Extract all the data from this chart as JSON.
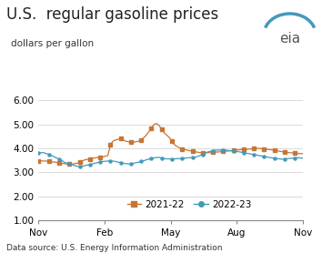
{
  "title": "U.S.  regular gasoline prices",
  "ylabel": "dollars per gallon",
  "datasource": "Data source: U.S. Energy Information Administration",
  "eia_text": "eia",
  "ylim": [
    1.0,
    6.5
  ],
  "yticks": [
    1.0,
    2.0,
    3.0,
    4.0,
    5.0,
    6.0
  ],
  "ytick_labels": [
    "1.00",
    "2.00",
    "3.00",
    "4.00",
    "5.00",
    "6.00"
  ],
  "xtick_labels": [
    "Nov",
    "Feb",
    "May",
    "Aug",
    "Nov"
  ],
  "xtick_pos": [
    0.0,
    0.25,
    0.5,
    0.75,
    1.0
  ],
  "color_2122": "#C87533",
  "color_2223": "#4499BB",
  "series_2122": [
    3.48,
    3.48,
    3.47,
    3.47,
    3.45,
    3.44,
    3.43,
    3.41,
    3.38,
    3.37,
    3.36,
    3.35,
    3.34,
    3.34,
    3.36,
    3.38,
    3.42,
    3.47,
    3.52,
    3.54,
    3.56,
    3.59,
    3.6,
    3.62,
    3.63,
    3.65,
    3.67,
    3.7,
    4.15,
    4.3,
    4.35,
    4.38,
    4.4,
    4.35,
    4.3,
    4.28,
    4.25,
    4.25,
    4.28,
    4.3,
    4.35,
    4.45,
    4.55,
    4.7,
    4.85,
    5.0,
    5.04,
    4.95,
    4.8,
    4.65,
    4.55,
    4.45,
    4.3,
    4.15,
    4.08,
    4.02,
    3.98,
    3.95,
    3.92,
    3.9,
    3.88,
    3.86,
    3.84,
    3.82,
    3.82,
    3.82,
    3.82,
    3.82,
    3.83,
    3.84,
    3.85,
    3.86,
    3.87,
    3.88,
    3.89,
    3.9,
    3.92,
    3.93,
    3.94,
    3.95,
    3.95,
    3.95,
    3.97,
    3.98,
    3.99,
    4.0,
    4.0,
    3.99,
    3.97,
    3.96,
    3.95,
    3.94,
    3.92,
    3.9,
    3.88,
    3.86,
    3.84,
    3.83,
    3.82,
    3.81,
    3.8,
    3.79,
    3.78,
    3.78
  ],
  "series_2223": [
    3.8,
    3.82,
    3.82,
    3.78,
    3.75,
    3.7,
    3.65,
    3.6,
    3.55,
    3.5,
    3.42,
    3.38,
    3.35,
    3.32,
    3.28,
    3.25,
    3.24,
    3.25,
    3.28,
    3.3,
    3.32,
    3.35,
    3.38,
    3.4,
    3.43,
    3.45,
    3.46,
    3.47,
    3.47,
    3.47,
    3.45,
    3.42,
    3.4,
    3.38,
    3.36,
    3.35,
    3.36,
    3.38,
    3.4,
    3.42,
    3.45,
    3.48,
    3.52,
    3.55,
    3.58,
    3.6,
    3.62,
    3.62,
    3.6,
    3.58,
    3.56,
    3.56,
    3.56,
    3.56,
    3.57,
    3.57,
    3.58,
    3.59,
    3.6,
    3.61,
    3.62,
    3.63,
    3.66,
    3.7,
    3.75,
    3.8,
    3.85,
    3.88,
    3.9,
    3.92,
    3.93,
    3.93,
    3.93,
    3.92,
    3.91,
    3.9,
    3.89,
    3.87,
    3.86,
    3.84,
    3.82,
    3.8,
    3.78,
    3.76,
    3.74,
    3.72,
    3.7,
    3.68,
    3.66,
    3.64,
    3.62,
    3.6,
    3.58,
    3.57,
    3.56,
    3.55,
    3.56,
    3.57,
    3.58,
    3.59,
    3.6,
    3.61,
    3.6,
    3.59
  ],
  "background_color": "#ffffff",
  "grid_color": "#cccccc",
  "title_fontsize": 12,
  "label_fontsize": 7.5,
  "tick_fontsize": 7.5,
  "legend_fontsize": 7.5,
  "datasource_fontsize": 6.5
}
